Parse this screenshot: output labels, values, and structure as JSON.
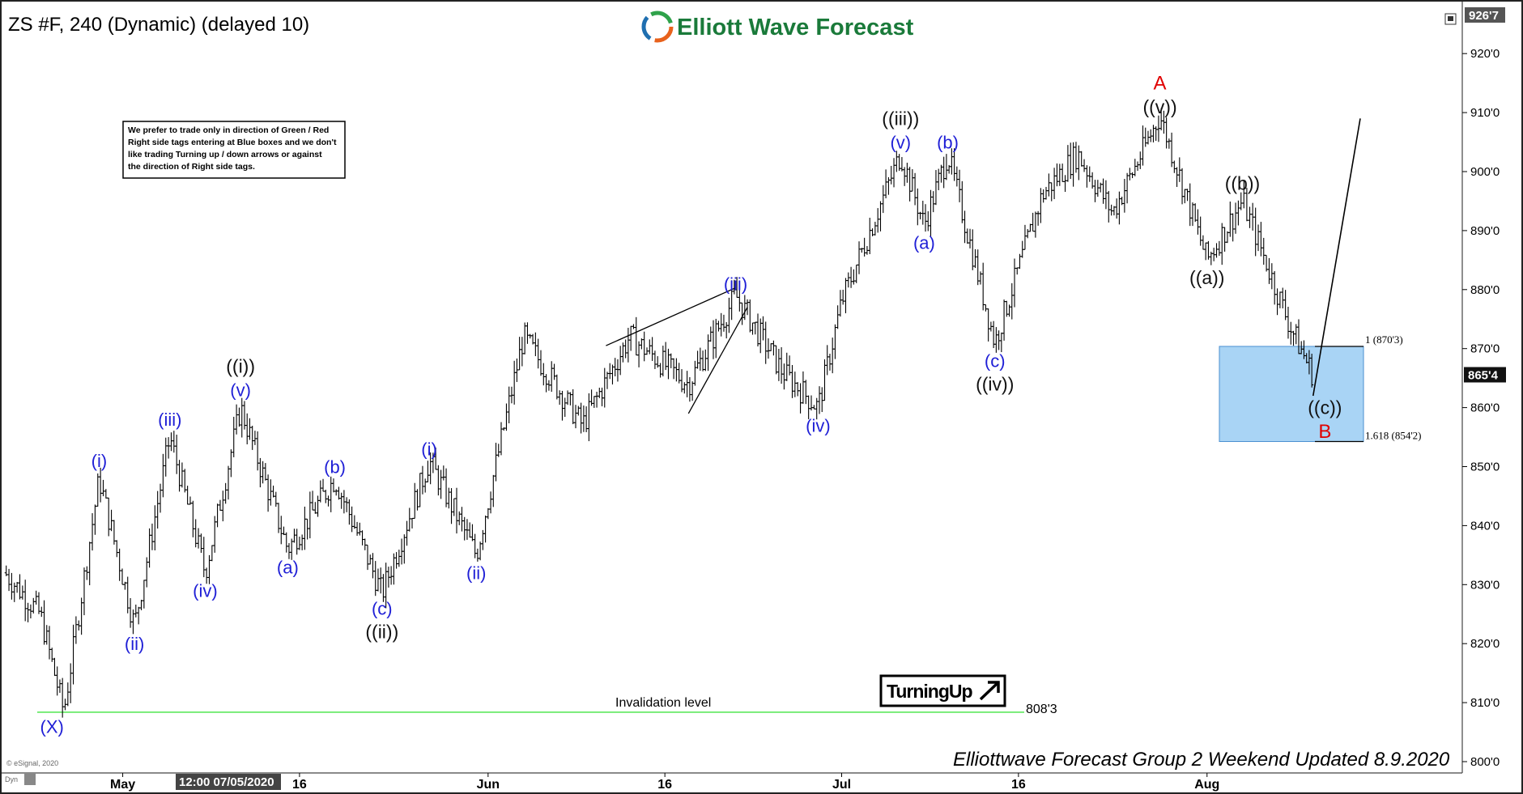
{
  "header": {
    "symbol_title": "ZS #F, 240 (Dynamic) (delayed 10)",
    "brand_name": "Elliott Wave Forecast",
    "brand_colors": {
      "text": "#1a7a3a",
      "ring_orange": "#e8621c",
      "ring_blue": "#1f6fb0",
      "ring_green": "#2fa24a"
    }
  },
  "note_box": {
    "lines": [
      "We prefer to trade only in direction of Green / Red",
      "Right side tags entering at Blue boxes and we don't",
      "like trading Turning up / down arrows or against",
      "the direction of Right side tags."
    ]
  },
  "turning_badge": {
    "label": "TurningUp",
    "arrow_icon": "arrow-up-right-icon"
  },
  "invalidation": {
    "label": "Invalidation level",
    "value_label": "808'3",
    "value": 808.375,
    "color": "#5ee85e"
  },
  "blue_box": {
    "top_label": "1 (870'3)",
    "bottom_label": "1.618 (854'2)",
    "top": 870.375,
    "bottom": 854.25,
    "color": "#a9d4f5",
    "border": "#4a8fd0"
  },
  "price_tag": {
    "label": "865'4",
    "value": 865.5
  },
  "top_price_tag": {
    "label": "926'7"
  },
  "footer": {
    "updated_text": "Elliottwave Forecast Group 2 Weekend Updated 8.9.2020",
    "copyright": "© eSignal, 2020",
    "dyn_label": "Dyn",
    "date_box": "12:00 07/05/2020"
  },
  "chart_data": {
    "type": "ohlc",
    "title": "ZS #F, 240 (Dynamic) (delayed 10)",
    "ylim": [
      798,
      927
    ],
    "y_ticks": [
      {
        "value": 800,
        "label": "800'0"
      },
      {
        "value": 810,
        "label": "810'0"
      },
      {
        "value": 820,
        "label": "820'0"
      },
      {
        "value": 830,
        "label": "830'0"
      },
      {
        "value": 840,
        "label": "840'0"
      },
      {
        "value": 850,
        "label": "850'0"
      },
      {
        "value": 860,
        "label": "860'0"
      },
      {
        "value": 870,
        "label": "870'0"
      },
      {
        "value": 880,
        "label": "880'0"
      },
      {
        "value": 890,
        "label": "890'0"
      },
      {
        "value": 900,
        "label": "900'0"
      },
      {
        "value": 910,
        "label": "910'0"
      },
      {
        "value": 920,
        "label": "920'0"
      }
    ],
    "x_range": [
      "2020-04-21",
      "2020-08-14"
    ],
    "x_ticks": [
      {
        "date": "2020-05-01",
        "label": "May"
      },
      {
        "date": "2020-05-16",
        "label": "16"
      },
      {
        "date": "2020-06-01",
        "label": "Jun"
      },
      {
        "date": "2020-06-16",
        "label": "16"
      },
      {
        "date": "2020-07-01",
        "label": "Jul"
      },
      {
        "date": "2020-07-16",
        "label": "16"
      },
      {
        "date": "2020-08-01",
        "label": "Aug"
      }
    ],
    "price_path": [
      {
        "date": "2020-04-21",
        "price": 832
      },
      {
        "date": "2020-04-24",
        "price": 825
      },
      {
        "date": "2020-04-26",
        "price": 808.4
      },
      {
        "date": "2020-04-29",
        "price": 848
      },
      {
        "date": "2020-05-02",
        "price": 823
      },
      {
        "date": "2020-05-05",
        "price": 855
      },
      {
        "date": "2020-05-08",
        "price": 832
      },
      {
        "date": "2020-05-11",
        "price": 860
      },
      {
        "date": "2020-05-15",
        "price": 836
      },
      {
        "date": "2020-05-19",
        "price": 848
      },
      {
        "date": "2020-05-23",
        "price": 828.5
      },
      {
        "date": "2020-05-27",
        "price": 851
      },
      {
        "date": "2020-05-31",
        "price": 835
      },
      {
        "date": "2020-06-04",
        "price": 872
      },
      {
        "date": "2020-06-09",
        "price": 857
      },
      {
        "date": "2020-06-13",
        "price": 872
      },
      {
        "date": "2020-06-18",
        "price": 864
      },
      {
        "date": "2020-06-22",
        "price": 879
      },
      {
        "date": "2020-06-26",
        "price": 866
      },
      {
        "date": "2020-06-29",
        "price": 860
      },
      {
        "date": "2020-07-01",
        "price": 878
      },
      {
        "date": "2020-07-06",
        "price": 903
      },
      {
        "date": "2020-07-08",
        "price": 891
      },
      {
        "date": "2020-07-10",
        "price": 903
      },
      {
        "date": "2020-07-14",
        "price": 871
      },
      {
        "date": "2020-07-18",
        "price": 896
      },
      {
        "date": "2020-07-21",
        "price": 903
      },
      {
        "date": "2020-07-24",
        "price": 893
      },
      {
        "date": "2020-07-28",
        "price": 909.5
      },
      {
        "date": "2020-08-01",
        "price": 885
      },
      {
        "date": "2020-08-04",
        "price": 895
      },
      {
        "date": "2020-08-05",
        "price": 890
      },
      {
        "date": "2020-08-08",
        "price": 874
      },
      {
        "date": "2020-08-10",
        "price": 865.5
      }
    ],
    "projection": [
      {
        "date": "2020-08-10",
        "price": 862
      },
      {
        "date": "2020-08-14",
        "price": 909
      }
    ],
    "wave_labels": [
      {
        "text": "(X)",
        "date": "2020-04-25",
        "price": 806,
        "color": "blue"
      },
      {
        "text": "(i)",
        "date": "2020-04-29",
        "price": 851,
        "color": "blue"
      },
      {
        "text": "(ii)",
        "date": "2020-05-02",
        "price": 820,
        "color": "blue"
      },
      {
        "text": "(iii)",
        "date": "2020-05-05",
        "price": 858,
        "color": "blue"
      },
      {
        "text": "(iv)",
        "date": "2020-05-08",
        "price": 829,
        "color": "blue"
      },
      {
        "text": "(v)",
        "date": "2020-05-11",
        "price": 863,
        "color": "blue"
      },
      {
        "text": "((i))",
        "date": "2020-05-11",
        "price": 867,
        "color": "black"
      },
      {
        "text": "(a)",
        "date": "2020-05-15",
        "price": 833,
        "color": "blue"
      },
      {
        "text": "(b)",
        "date": "2020-05-19",
        "price": 850,
        "color": "blue"
      },
      {
        "text": "(c)",
        "date": "2020-05-23",
        "price": 826,
        "color": "blue"
      },
      {
        "text": "((ii))",
        "date": "2020-05-23",
        "price": 822,
        "color": "black"
      },
      {
        "text": "(i)",
        "date": "2020-05-27",
        "price": 853,
        "color": "blue"
      },
      {
        "text": "(ii)",
        "date": "2020-05-31",
        "price": 832,
        "color": "blue"
      },
      {
        "text": "(iii)",
        "date": "2020-06-22",
        "price": 881,
        "color": "blue"
      },
      {
        "text": "(iv)",
        "date": "2020-06-29",
        "price": 857,
        "color": "blue"
      },
      {
        "text": "(v)",
        "date": "2020-07-06",
        "price": 905,
        "color": "blue"
      },
      {
        "text": "((iii))",
        "date": "2020-07-06",
        "price": 909,
        "color": "black"
      },
      {
        "text": "(a)",
        "date": "2020-07-08",
        "price": 888,
        "color": "blue"
      },
      {
        "text": "(b)",
        "date": "2020-07-10",
        "price": 905,
        "color": "blue"
      },
      {
        "text": "(c)",
        "date": "2020-07-14",
        "price": 868,
        "color": "blue"
      },
      {
        "text": "((iv))",
        "date": "2020-07-14",
        "price": 864,
        "color": "black"
      },
      {
        "text": "((v))",
        "date": "2020-07-28",
        "price": 911,
        "color": "black"
      },
      {
        "text": "A",
        "date": "2020-07-28",
        "price": 915,
        "color": "red"
      },
      {
        "text": "((a))",
        "date": "2020-08-01",
        "price": 882,
        "color": "black"
      },
      {
        "text": "((b))",
        "date": "2020-08-04",
        "price": 898,
        "color": "black"
      },
      {
        "text": "((c))",
        "date": "2020-08-11",
        "price": 860,
        "color": "black"
      },
      {
        "text": "B",
        "date": "2020-08-11",
        "price": 856,
        "color": "red"
      }
    ],
    "grid": false
  }
}
